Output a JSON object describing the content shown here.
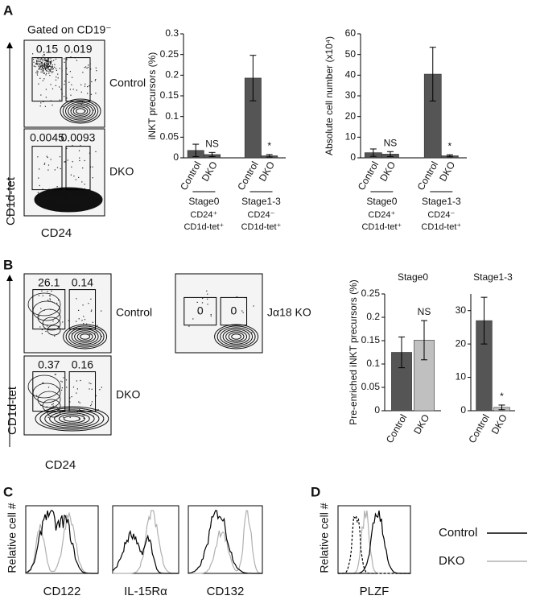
{
  "panel_a": {
    "letter": "A",
    "gate": "Gated on CD19⁻",
    "y_label": "CD1d-tet",
    "x_label": "CD24",
    "plots": [
      {
        "label": "Control",
        "gates": [
          "0.15",
          "0.019"
        ]
      },
      {
        "label": "DKO",
        "gates": [
          "0.0045",
          "0.0093"
        ]
      }
    ]
  },
  "panel_b": {
    "letter": "B",
    "y_label": "CD1d-tet",
    "x_label": "CD24",
    "plots": [
      {
        "label": "Control",
        "gates": [
          "26.1",
          "0.14"
        ]
      },
      {
        "label": "Jα18 KO",
        "gates": [
          "0",
          "0"
        ]
      },
      {
        "label": "DKO",
        "gates": [
          "0.37",
          "0.16"
        ]
      }
    ]
  },
  "panel_c": {
    "letter": "C",
    "y_label": "Relative cell #",
    "plots": [
      "CD122",
      "IL-15Rα",
      "CD132"
    ]
  },
  "panel_d": {
    "letter": "D",
    "y_label": "Relative cell #",
    "x_label": "PLZF",
    "legend": [
      {
        "name": "Control",
        "color": "#000000"
      },
      {
        "name": "DKO",
        "color": "#b0b0b0"
      }
    ]
  },
  "chart_data": [
    {
      "type": "bar",
      "ylabel": "iNKT precursors (%)",
      "categories": [
        "Control",
        "DKO",
        "Control",
        "DKO"
      ],
      "values": [
        0.018,
        0.008,
        0.193,
        0.005
      ],
      "errors": [
        0.015,
        0.005,
        0.055,
        0.003
      ],
      "colors": [
        "#555555",
        "#555555",
        "#555555",
        "#555555"
      ],
      "annotations": [
        null,
        "NS",
        null,
        "*"
      ],
      "ylim": [
        0,
        0.3
      ],
      "yticks": [
        0,
        0.05,
        0.1,
        0.15,
        0.2,
        0.25,
        0.3
      ],
      "groups": [
        {
          "name": "Stage0",
          "sub": [
            "CD24⁺",
            "CD1d-tet⁺"
          ]
        },
        {
          "name": "Stage1-3",
          "sub": [
            "CD24⁻",
            "CD1d-tet⁺"
          ]
        }
      ]
    },
    {
      "type": "bar",
      "ylabel": "Absolute cell number  (x10⁴)",
      "categories": [
        "Control",
        "DKO",
        "Control",
        "DKO"
      ],
      "values": [
        2.5,
        1.8,
        40.5,
        1.0
      ],
      "errors": [
        1.8,
        1.2,
        13,
        0.5
      ],
      "colors": [
        "#555555",
        "#555555",
        "#555555",
        "#555555"
      ],
      "annotations": [
        null,
        "NS",
        null,
        "*"
      ],
      "ylim": [
        0,
        60
      ],
      "yticks": [
        0,
        10,
        20,
        30,
        40,
        50,
        60
      ],
      "groups": [
        {
          "name": "Stage0",
          "sub": [
            "CD24⁺",
            "CD1d-tet⁺"
          ]
        },
        {
          "name": "Stage1-3",
          "sub": [
            "CD24⁻",
            "CD1d-tet⁺"
          ]
        }
      ]
    },
    {
      "type": "bar",
      "title": "Stage0",
      "ylabel": "Pre-enriched iNKT precursors (%)",
      "categories": [
        "Control",
        "DKO"
      ],
      "values": [
        0.125,
        0.151
      ],
      "errors": [
        0.033,
        0.042
      ],
      "colors": [
        "#555555",
        "#c0c0c0"
      ],
      "annotations": [
        null,
        "NS"
      ],
      "ylim": [
        0,
        0.25
      ],
      "yticks": [
        0,
        0.05,
        0.1,
        0.15,
        0.2,
        0.25
      ]
    },
    {
      "type": "bar",
      "title": "Stage1-3",
      "categories": [
        "Control",
        "DKO"
      ],
      "values": [
        27,
        1
      ],
      "errors": [
        7,
        0.7
      ],
      "colors": [
        "#555555",
        "#c0c0c0"
      ],
      "annotations": [
        null,
        "*"
      ],
      "ylim": [
        0,
        35
      ],
      "yticks": [
        0,
        10,
        20,
        30
      ]
    }
  ]
}
